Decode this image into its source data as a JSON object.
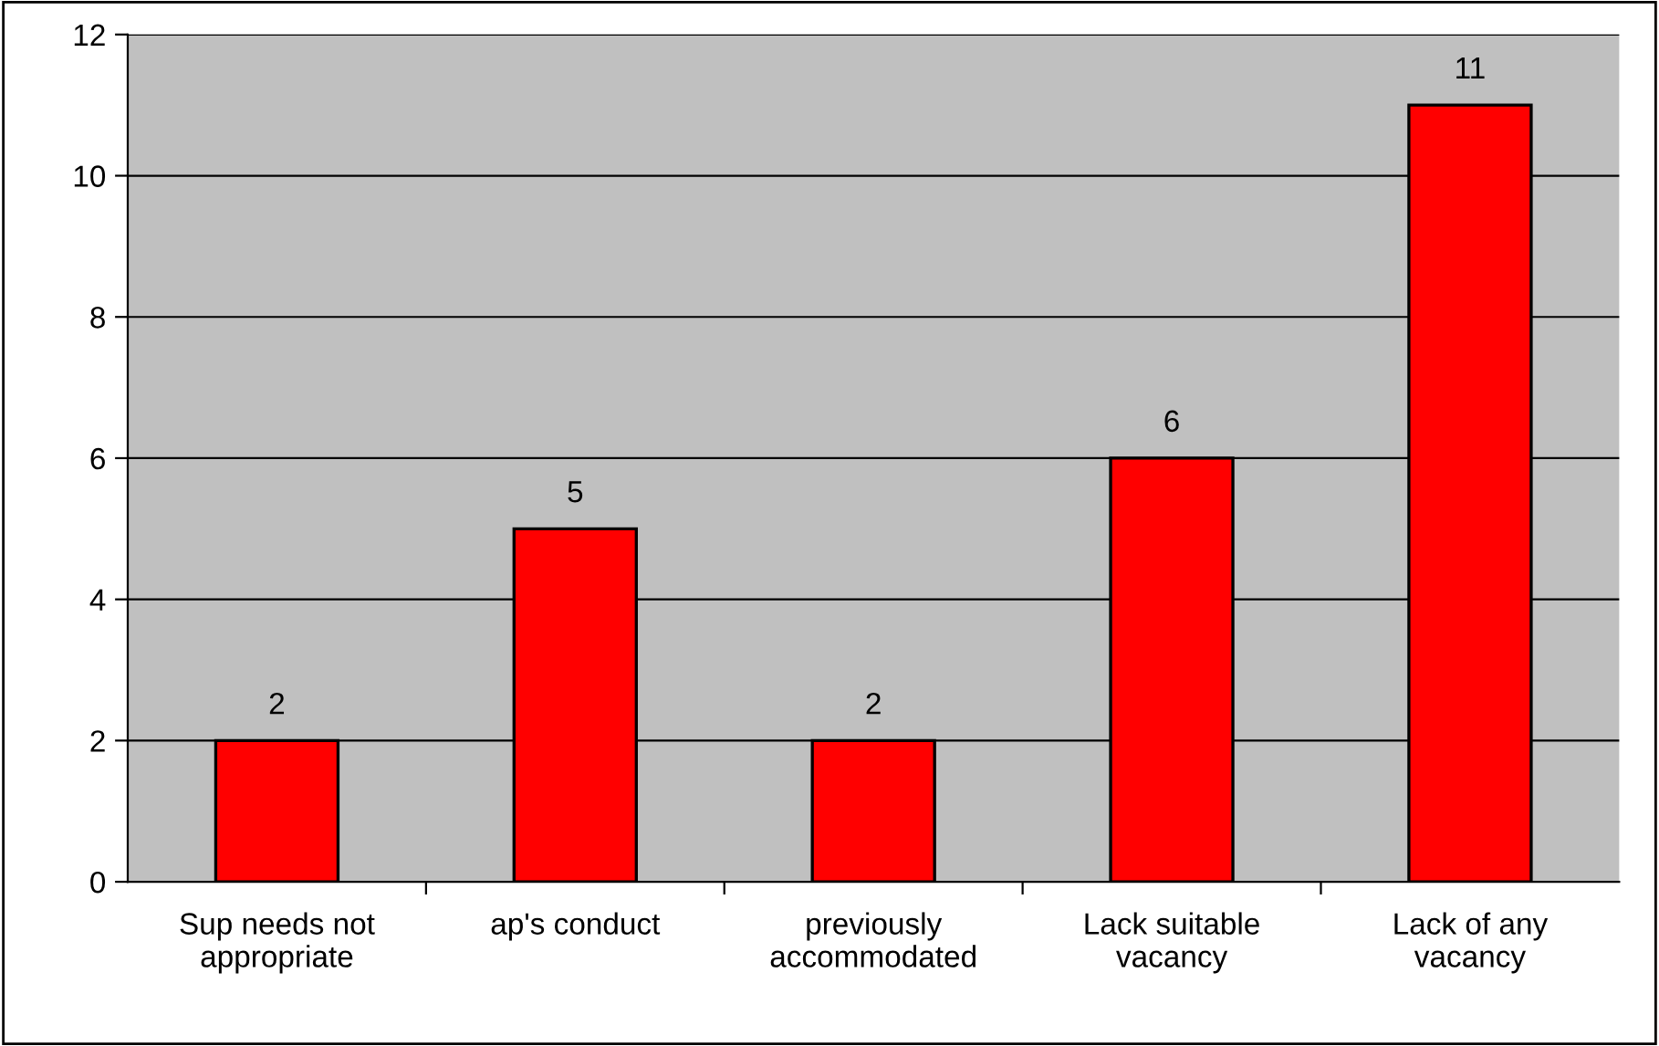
{
  "chart_data": {
    "type": "bar",
    "categories": [
      "Sup needs not appropriate",
      "ap's conduct",
      "previously accommodated",
      "Lack suitable vacancy",
      "Lack of any vacancy"
    ],
    "values": [
      2,
      5,
      2,
      6,
      11
    ],
    "color": "#ff0000",
    "ylim": [
      0,
      12
    ],
    "yticks": [
      0,
      2,
      4,
      6,
      8,
      10,
      12
    ],
    "grid": "y",
    "data_labels": true,
    "legend": false
  }
}
